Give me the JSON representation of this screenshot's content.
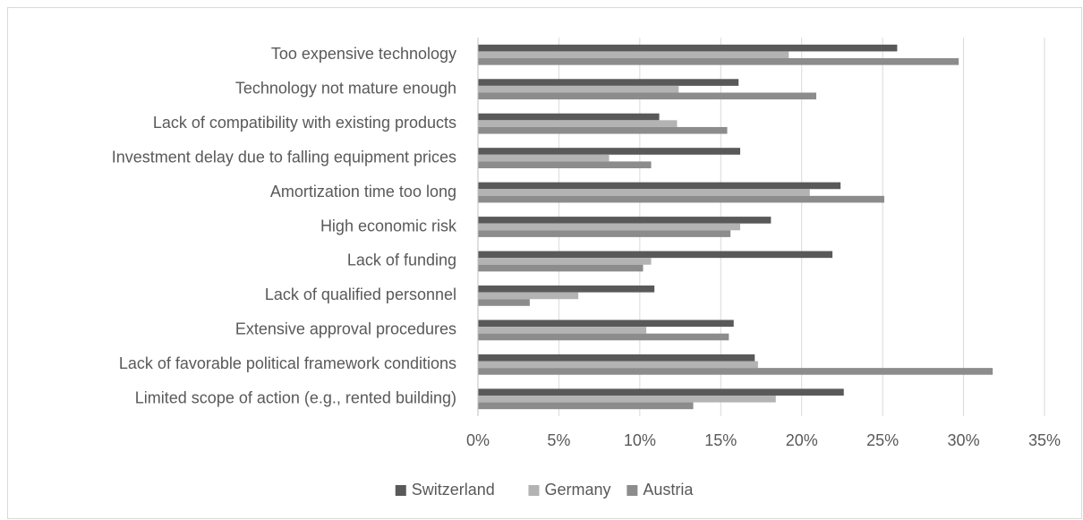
{
  "chart_data": {
    "type": "bar",
    "orientation": "horizontal",
    "categories": [
      "Too expensive technology",
      "Technology not mature enough",
      "Lack of compatibility with existing products",
      "Investment delay due to falling equipment prices",
      "Amortization time too long",
      "High economic risk",
      "Lack of funding",
      "Lack of qualified personnel",
      "Extensive approval procedures",
      "Lack of favorable political framework conditions",
      "Limited scope of action (e.g., rented building)"
    ],
    "series": [
      {
        "name": "Switzerland",
        "color": "#595959",
        "values": [
          25.9,
          16.1,
          11.2,
          16.2,
          22.4,
          18.1,
          21.9,
          10.9,
          15.8,
          17.1,
          22.6
        ]
      },
      {
        "name": "Germany",
        "color": "#b3b3b3",
        "values": [
          19.2,
          12.4,
          12.3,
          8.1,
          20.5,
          16.2,
          10.7,
          6.2,
          10.4,
          17.3,
          18.4
        ]
      },
      {
        "name": "Austria",
        "color": "#8c8c8c",
        "values": [
          29.7,
          20.9,
          15.4,
          10.7,
          25.1,
          15.6,
          10.2,
          3.2,
          15.5,
          31.8,
          13.3
        ]
      }
    ],
    "xlim": [
      0,
      35
    ],
    "xticks": [
      {
        "value": 0,
        "label": "0%"
      },
      {
        "value": 5,
        "label": "5%"
      },
      {
        "value": 10,
        "label": "10%"
      },
      {
        "value": 15,
        "label": "15%"
      },
      {
        "value": 20,
        "label": "20%"
      },
      {
        "value": 25,
        "label": "25%"
      },
      {
        "value": 30,
        "label": "30%"
      },
      {
        "value": 35,
        "label": "35%"
      }
    ],
    "grid": true,
    "legend": "bottom"
  }
}
